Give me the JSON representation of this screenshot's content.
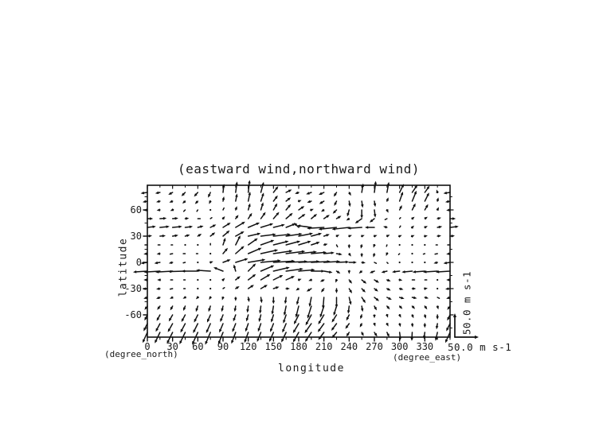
{
  "title": "(eastward wind,northward wind)",
  "chart_data": {
    "type": "quiver",
    "title": "(eastward wind,northward wind)",
    "xlabel": "longitude",
    "x_unit": "(degree_east)",
    "ylabel": "latitude",
    "y_unit": "(degree_north)",
    "xlim": [
      0,
      360
    ],
    "ylim": [
      -85.5,
      88.2
    ],
    "grid": "off",
    "x_ticks_major": [
      0,
      30,
      60,
      90,
      120,
      150,
      180,
      210,
      240,
      270,
      300,
      330
    ],
    "x_ticks_minor_step": 15,
    "y_ticks_major": [
      -60,
      -30,
      0,
      30,
      60
    ],
    "y_ticks_minor": [
      -75,
      -45,
      -15,
      15,
      45,
      75
    ],
    "reference_vector": {
      "value": 50.0,
      "label": "50.0 m s-1"
    },
    "vector_color": "#111111",
    "lons": [
      0,
      15,
      30,
      45,
      60,
      75,
      90,
      105,
      120,
      135,
      150,
      165,
      180,
      195,
      210,
      225,
      240,
      255,
      270,
      285,
      300,
      315,
      330,
      345,
      360
    ],
    "lats": [
      80,
      70,
      60,
      50,
      40,
      30,
      20,
      10,
      0,
      -10,
      -20,
      -30,
      -40,
      -50,
      -60,
      -70,
      -80
    ],
    "u": [
      [
        -14,
        -10,
        -9,
        -8,
        -8,
        -5,
        2,
        3,
        3,
        6,
        10,
        12,
        -8,
        -11,
        -11,
        -6,
        4,
        3,
        3,
        4,
        9,
        11,
        10,
        -2,
        -14
      ],
      [
        -10,
        -8,
        -7,
        -6,
        -6,
        -3,
        2,
        3,
        4,
        6,
        9,
        10,
        6,
        -9,
        -10,
        -5,
        2,
        2,
        2,
        3,
        7,
        9,
        9,
        2,
        -10
      ],
      [
        -8,
        -7,
        -5,
        -3,
        -2,
        0,
        2,
        3,
        4,
        5,
        8,
        10,
        12,
        5,
        -6,
        -8,
        -4,
        0,
        2,
        3,
        5,
        7,
        7,
        3,
        -8
      ],
      [
        12,
        14,
        12,
        8,
        5,
        3,
        4,
        6,
        8,
        10,
        12,
        14,
        14,
        12,
        12,
        10,
        -6,
        -14,
        -10,
        -4,
        2,
        5,
        6,
        8,
        12
      ],
      [
        18,
        20,
        20,
        16,
        12,
        12,
        16,
        20,
        24,
        26,
        24,
        20,
        -10,
        -30,
        -36,
        -38,
        -36,
        -30,
        -20,
        -8,
        2,
        4,
        6,
        10,
        18
      ],
      [
        10,
        12,
        12,
        10,
        8,
        10,
        14,
        18,
        26,
        32,
        36,
        34,
        30,
        22,
        12,
        6,
        6,
        6,
        6,
        6,
        5,
        5,
        6,
        8,
        10
      ],
      [
        -5,
        -4,
        -3,
        -2,
        -2,
        0,
        5,
        10,
        20,
        28,
        32,
        30,
        26,
        18,
        8,
        2,
        0,
        -2,
        -2,
        -1,
        -1,
        -1,
        -2,
        -3,
        -5
      ],
      [
        -8,
        -7,
        -5,
        -4,
        -3,
        0,
        10,
        18,
        28,
        36,
        40,
        40,
        38,
        32,
        22,
        12,
        4,
        0,
        -2,
        -2,
        -2,
        -2,
        -3,
        -5,
        -8
      ],
      [
        -14,
        -12,
        -8,
        -4,
        0,
        6,
        16,
        26,
        36,
        42,
        45,
        45,
        44,
        40,
        34,
        26,
        16,
        8,
        4,
        2,
        1,
        0,
        -2,
        -8,
        -14
      ],
      [
        -30,
        -34,
        -36,
        -36,
        -34,
        -30,
        -20,
        -4,
        16,
        28,
        34,
        36,
        34,
        28,
        18,
        8,
        0,
        -6,
        -10,
        -12,
        -16,
        -22,
        -26,
        -30,
        -30
      ],
      [
        -8,
        -6,
        -4,
        -3,
        -2,
        0,
        4,
        10,
        16,
        20,
        20,
        18,
        6,
        -6,
        -8,
        -2,
        6,
        10,
        10,
        8,
        6,
        5,
        4,
        2,
        -8
      ],
      [
        -10,
        -8,
        -5,
        -3,
        -2,
        0,
        3,
        8,
        12,
        14,
        12,
        8,
        -6,
        -10,
        -6,
        0,
        6,
        8,
        8,
        8,
        8,
        8,
        6,
        2,
        -10
      ],
      [
        -8,
        -8,
        -6,
        -5,
        -4,
        -3,
        -2,
        0,
        2,
        2,
        0,
        -2,
        -4,
        -4,
        -2,
        0,
        4,
        8,
        10,
        10,
        10,
        10,
        8,
        4,
        -8
      ],
      [
        -6,
        -6,
        -5,
        -4,
        -4,
        -4,
        -3,
        -2,
        -2,
        -2,
        -3,
        -4,
        -6,
        -8,
        -8,
        -6,
        -2,
        2,
        5,
        6,
        6,
        6,
        5,
        2,
        -6
      ],
      [
        -6,
        -7,
        -8,
        -8,
        -8,
        -7,
        -6,
        -5,
        -4,
        -4,
        -5,
        -6,
        -10,
        -12,
        -12,
        -10,
        -6,
        -3,
        0,
        2,
        3,
        3,
        2,
        0,
        -6
      ],
      [
        -8,
        -9,
        -10,
        -10,
        -10,
        -9,
        -8,
        -7,
        -6,
        -6,
        -7,
        -8,
        -12,
        -14,
        -13,
        -11,
        -8,
        -4,
        2,
        3,
        2,
        1,
        0,
        -2,
        -8
      ],
      [
        -10,
        -11,
        -12,
        -12,
        -12,
        -11,
        -10,
        -9,
        -8,
        -8,
        -9,
        -10,
        -12,
        -13,
        -12,
        -10,
        -6,
        4,
        6,
        5,
        2,
        -1,
        -2,
        -4,
        -10
      ]
    ],
    "v": [
      [
        -2,
        -2,
        -5,
        -8,
        -9,
        -11,
        18,
        23,
        26,
        22,
        13,
        6,
        -3,
        -4,
        -5,
        -9,
        -7,
        19,
        24,
        22,
        18,
        16,
        14,
        6,
        -2
      ],
      [
        -2,
        -2,
        -3,
        -5,
        -6,
        -6,
        10,
        16,
        20,
        18,
        12,
        8,
        2,
        -3,
        -6,
        -10,
        -12,
        -14,
        -12,
        8,
        20,
        22,
        18,
        8,
        -2
      ],
      [
        -1,
        -1,
        -2,
        -3,
        -3,
        -2,
        4,
        8,
        14,
        16,
        14,
        12,
        8,
        2,
        -4,
        -8,
        -14,
        -18,
        -16,
        -6,
        10,
        14,
        12,
        6,
        -1
      ],
      [
        0,
        1,
        1,
        1,
        0,
        2,
        5,
        8,
        12,
        14,
        14,
        12,
        10,
        10,
        8,
        6,
        -4,
        -10,
        -8,
        -2,
        2,
        4,
        4,
        2,
        0
      ],
      [
        2,
        2,
        2,
        2,
        3,
        6,
        10,
        12,
        10,
        8,
        6,
        8,
        10,
        4,
        -2,
        -4,
        -4,
        -2,
        0,
        2,
        3,
        4,
        3,
        2,
        2
      ],
      [
        1,
        1,
        2,
        3,
        5,
        8,
        12,
        10,
        6,
        4,
        4,
        5,
        6,
        6,
        4,
        3,
        2,
        2,
        2,
        3,
        2,
        2,
        1,
        1,
        1
      ],
      [
        0,
        0,
        0,
        0,
        1,
        3,
        15,
        20,
        14,
        10,
        8,
        8,
        8,
        6,
        2,
        -4,
        -8,
        -8,
        -6,
        -3,
        -1,
        0,
        0,
        0,
        0
      ],
      [
        -1,
        -1,
        -1,
        0,
        0,
        2,
        12,
        16,
        12,
        8,
        6,
        5,
        4,
        3,
        2,
        -2,
        -6,
        -8,
        -8,
        -5,
        -2,
        -1,
        -1,
        -1,
        -1
      ],
      [
        -2,
        -2,
        -2,
        -1,
        0,
        2,
        6,
        8,
        6,
        4,
        3,
        2,
        2,
        2,
        2,
        1,
        0,
        -1,
        -2,
        -2,
        -1,
        -1,
        -1,
        -2,
        -2
      ],
      [
        -2,
        -2,
        -2,
        -1,
        0,
        2,
        8,
        14,
        16,
        12,
        8,
        5,
        3,
        0,
        -3,
        -5,
        -6,
        -5,
        -4,
        -3,
        -2,
        -2,
        -2,
        -2,
        -2
      ],
      [
        0,
        0,
        0,
        0,
        0,
        1,
        4,
        8,
        12,
        12,
        10,
        8,
        2,
        -2,
        -4,
        -6,
        -8,
        -8,
        -6,
        -3,
        -1,
        0,
        0,
        0,
        0
      ],
      [
        -1,
        -1,
        -1,
        0,
        0,
        0,
        2,
        5,
        8,
        8,
        4,
        0,
        -4,
        -6,
        -8,
        -10,
        -10,
        -8,
        -6,
        -4,
        -2,
        0,
        1,
        0,
        -1
      ],
      [
        -3,
        -3,
        -3,
        -3,
        -4,
        -5,
        -6,
        -8,
        -10,
        -12,
        -14,
        -14,
        -16,
        -20,
        -24,
        -22,
        -16,
        -12,
        -8,
        -5,
        -3,
        -2,
        -2,
        -2,
        -3
      ],
      [
        -8,
        -8,
        -9,
        -10,
        -12,
        -12,
        -12,
        -12,
        -14,
        -16,
        -18,
        -20,
        -24,
        -26,
        -24,
        -20,
        -16,
        -12,
        -9,
        -7,
        -6,
        -6,
        -7,
        -7,
        -8
      ],
      [
        -12,
        -13,
        -14,
        -15,
        -16,
        -16,
        -15,
        -14,
        -14,
        -15,
        -16,
        -18,
        -20,
        -22,
        -20,
        -16,
        -12,
        -9,
        -7,
        -6,
        -6,
        -7,
        -8,
        -10,
        -12
      ],
      [
        -16,
        -17,
        -18,
        -19,
        -20,
        -20,
        -19,
        -18,
        -17,
        -17,
        -18,
        -19,
        -20,
        -20,
        -18,
        -15,
        -11,
        -8,
        -6,
        -6,
        -7,
        -8,
        -9,
        -12,
        -16
      ],
      [
        -22,
        -23,
        -24,
        -25,
        -26,
        -26,
        -25,
        -24,
        -22,
        -20,
        -20,
        -21,
        -21,
        -20,
        -16,
        -12,
        -9,
        -8,
        -9,
        -10,
        -16,
        -18,
        -14,
        -18,
        -22
      ]
    ]
  }
}
